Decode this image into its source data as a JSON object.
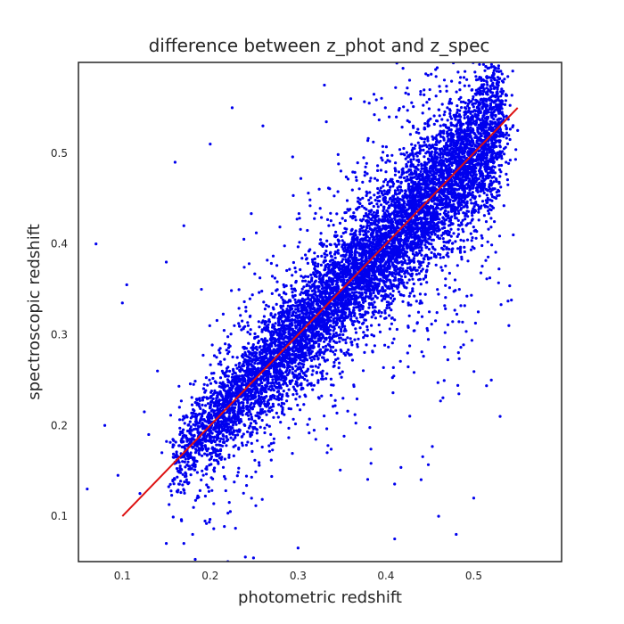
{
  "chart_data": {
    "type": "scatter",
    "title": "difference between z_phot and z_spec",
    "xlabel": "photometric redshift",
    "ylabel": "spectroscopic redshift",
    "xlim": [
      0.05,
      0.6
    ],
    "ylim": [
      0.05,
      0.6
    ],
    "x_ticks": [
      0.1,
      0.2,
      0.3,
      0.4,
      0.5
    ],
    "x_tick_labels": [
      "0.1",
      "0.2",
      "0.3",
      "0.4",
      "0.5"
    ],
    "y_ticks": [
      0.1,
      0.2,
      0.3,
      0.4,
      0.5
    ],
    "y_tick_labels": [
      "0.1",
      "0.2",
      "0.3",
      "0.4",
      "0.5"
    ],
    "grid": false,
    "legend": "none",
    "colors": {
      "points": "#0000ee",
      "fit_line": "#dd1111",
      "frame": "#262626"
    },
    "series": [
      {
        "kind": "scatter",
        "color": "#0000ee",
        "density_trend": {
          "x_range": [
            0.16,
            0.53
          ],
          "relation": "y ≈ x",
          "core_spread": 0.03,
          "outlier_spread": 0.08
        },
        "points": [
          [
            0.06,
            0.13
          ],
          [
            0.07,
            0.4
          ],
          [
            0.08,
            0.2
          ],
          [
            0.095,
            0.145
          ],
          [
            0.1,
            0.335
          ],
          [
            0.105,
            0.355
          ],
          [
            0.12,
            0.125
          ],
          [
            0.125,
            0.215
          ],
          [
            0.13,
            0.19
          ],
          [
            0.14,
            0.26
          ],
          [
            0.145,
            0.17
          ],
          [
            0.15,
            0.07
          ],
          [
            0.15,
            0.38
          ],
          [
            0.16,
            0.49
          ],
          [
            0.165,
            0.22
          ],
          [
            0.17,
            0.07
          ],
          [
            0.18,
            0.08
          ],
          [
            0.2,
            0.51
          ],
          [
            0.22,
            0.05
          ],
          [
            0.225,
            0.55
          ],
          [
            0.24,
            0.055
          ],
          [
            0.26,
            0.53
          ],
          [
            0.3,
            0.065
          ],
          [
            0.33,
            0.575
          ],
          [
            0.36,
            0.56
          ],
          [
            0.41,
            0.075
          ],
          [
            0.45,
            0.57
          ],
          [
            0.46,
            0.1
          ],
          [
            0.48,
            0.08
          ],
          [
            0.49,
            0.59
          ],
          [
            0.51,
            0.55
          ],
          [
            0.52,
            0.58
          ],
          [
            0.54,
            0.31
          ],
          [
            0.545,
            0.41
          ],
          [
            0.55,
            0.525
          ],
          [
            0.53,
            0.21
          ],
          [
            0.52,
            0.25
          ],
          [
            0.5,
            0.12
          ],
          [
            0.19,
            0.35
          ],
          [
            0.17,
            0.42
          ]
        ]
      },
      {
        "kind": "line",
        "color": "#dd1111",
        "x": [
          0.1,
          0.55
        ],
        "y": [
          0.1,
          0.55
        ]
      }
    ]
  }
}
